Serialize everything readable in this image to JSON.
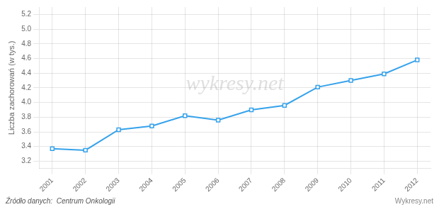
{
  "chart_data": {
    "type": "line",
    "x": [
      2001,
      2002,
      2003,
      2004,
      2005,
      2006,
      2007,
      2008,
      2009,
      2010,
      2011,
      2012
    ],
    "values": [
      3.37,
      3.35,
      3.63,
      3.68,
      3.82,
      3.76,
      3.9,
      3.96,
      4.21,
      4.3,
      4.39,
      4.58
    ],
    "marker": "square",
    "ylabel": "Liczba zachorowań (w tys.)",
    "xlim": [
      2000.6,
      2012.4
    ],
    "xticks": [
      2001,
      2002,
      2003,
      2004,
      2005,
      2006,
      2007,
      2008,
      2009,
      2010,
      2011,
      2012
    ],
    "ylim": [
      3.1,
      5.3
    ],
    "yticks": [
      3.2,
      3.4,
      3.6,
      3.8,
      {
        "value": 4.0,
        "label": "4.0"
      },
      4.2,
      4.4,
      4.6,
      4.8,
      {
        "value": 5.0,
        "label": "5.0"
      },
      5.2
    ],
    "grid": true,
    "annotations": [
      "wykresy.net",
      "Źródło danych:  Centrum Onkologii",
      "Wykresy.net"
    ]
  }
}
